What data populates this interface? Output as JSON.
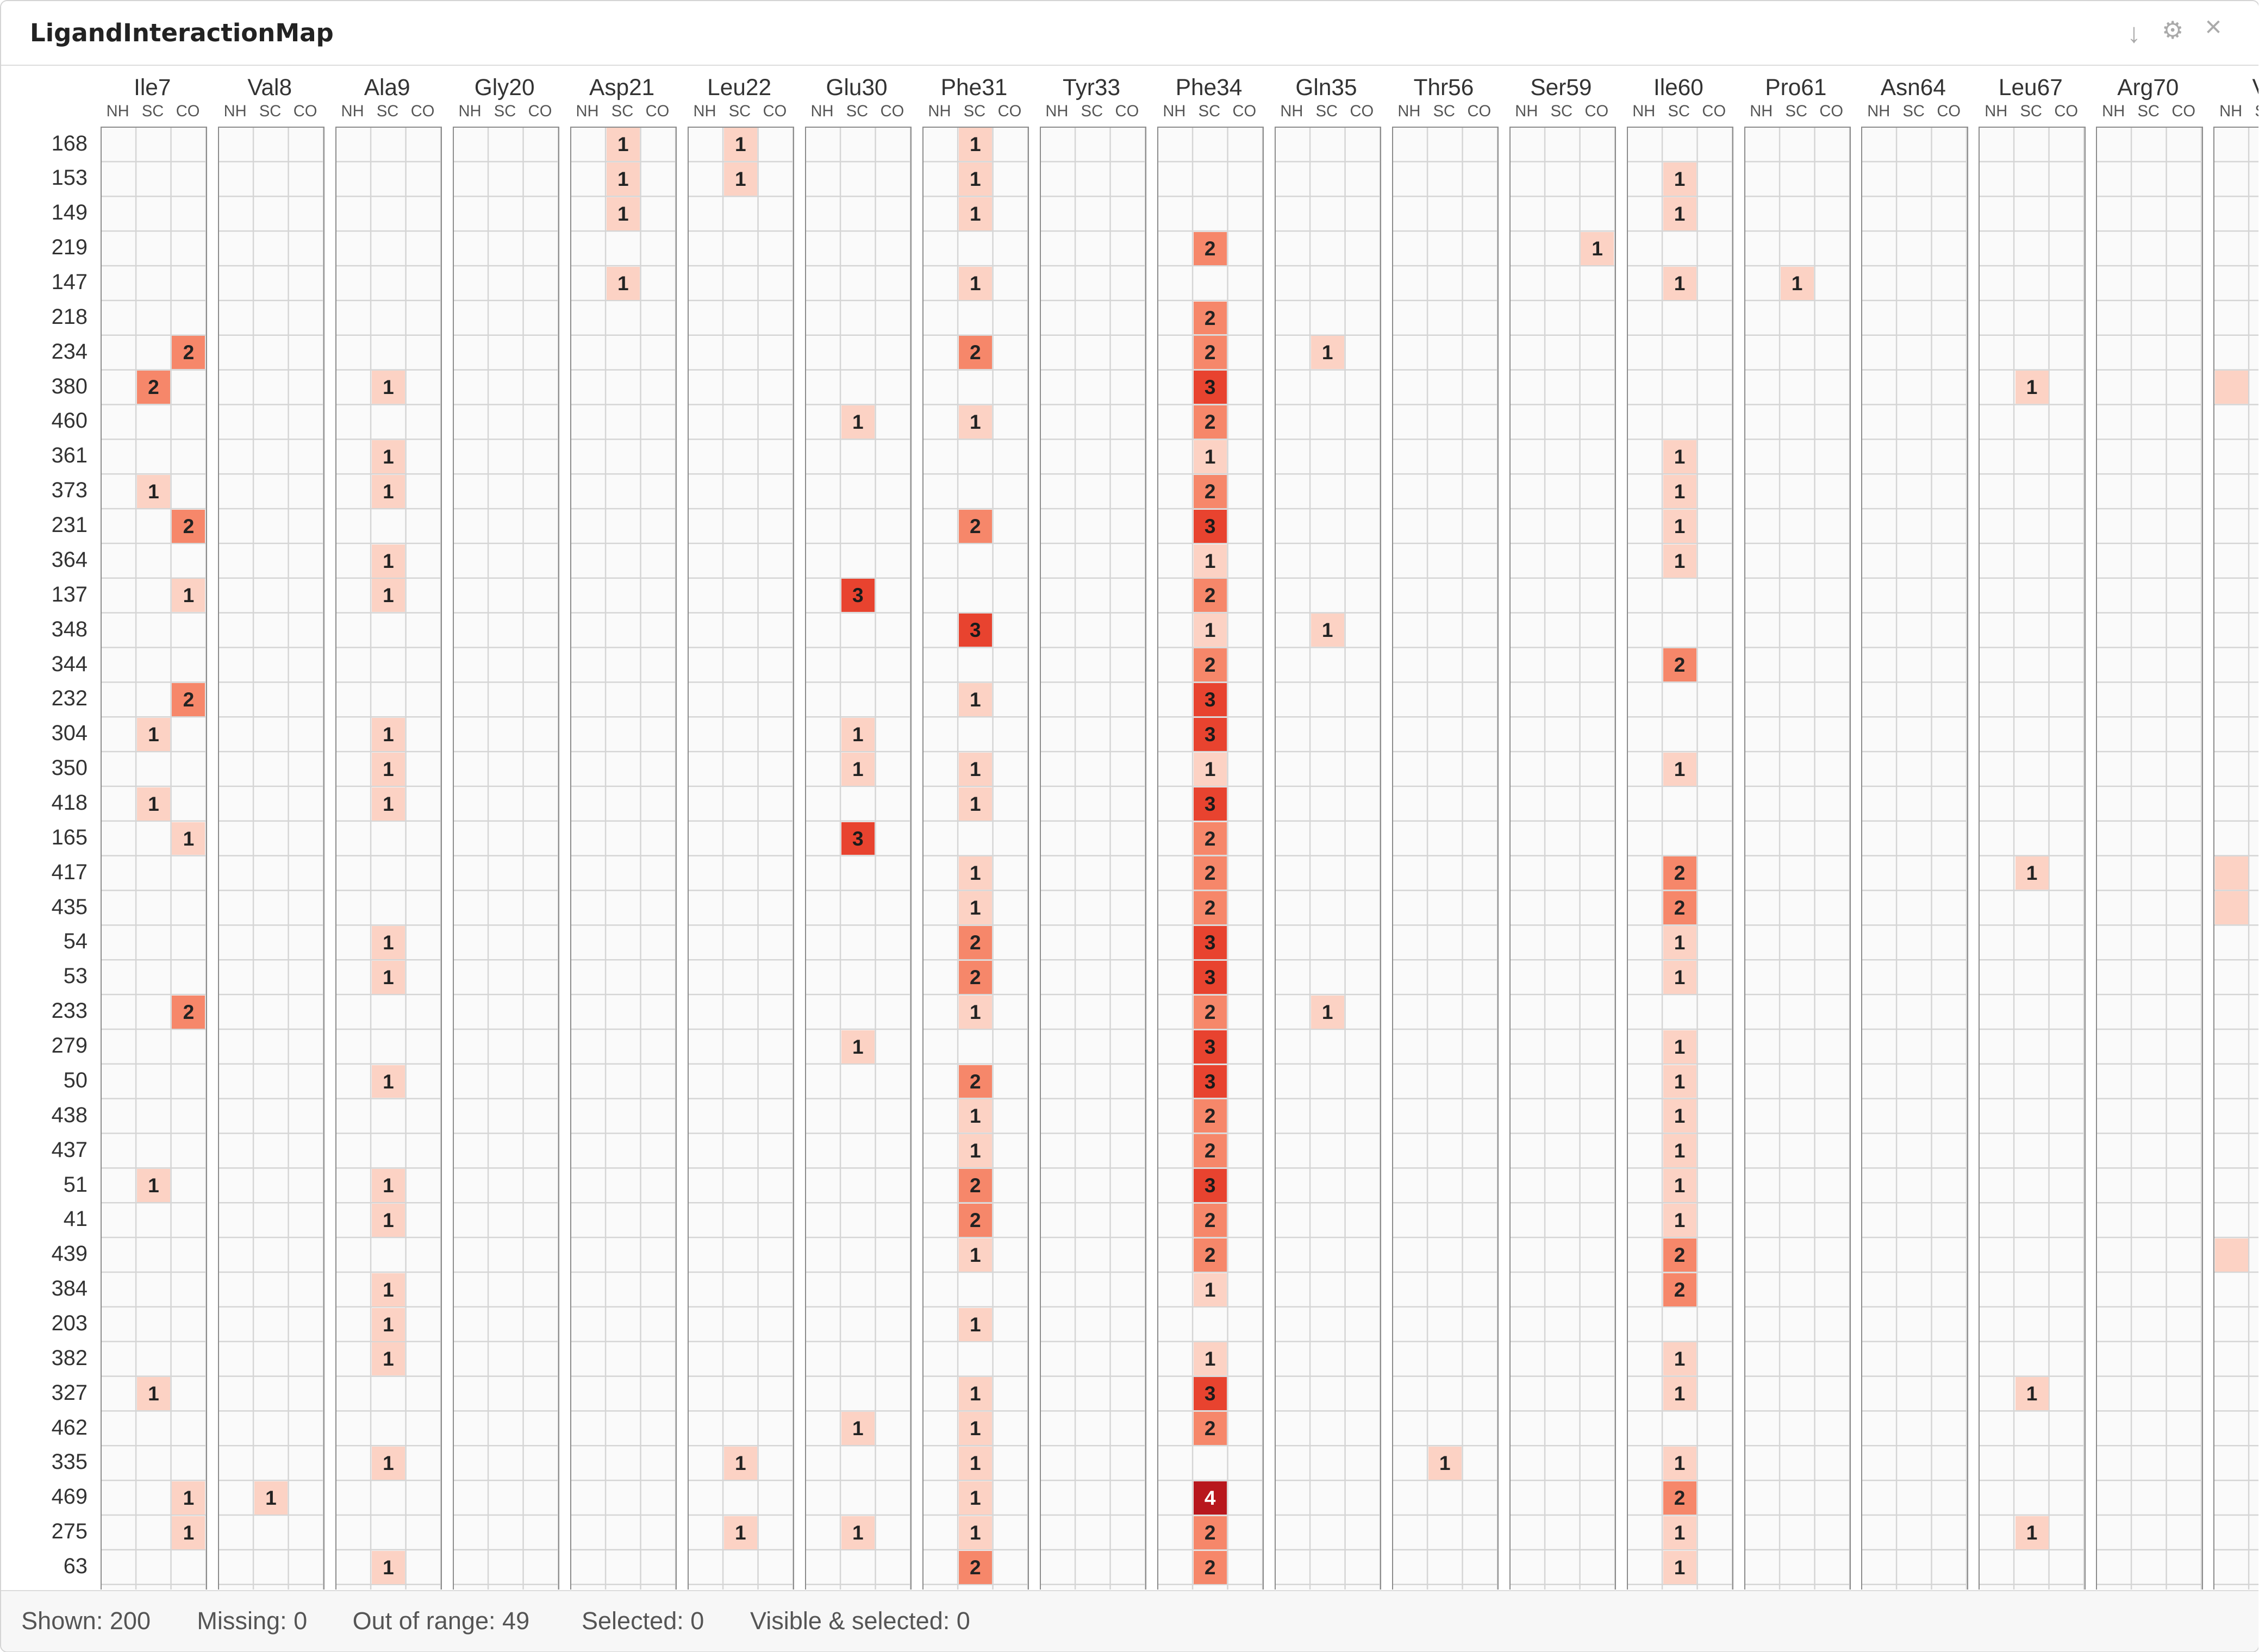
{
  "window": {
    "title": "LigandInteractionMap"
  },
  "toolbar": {
    "icons": [
      "download-icon",
      "gear-icon",
      "close-icon"
    ],
    "download_glyph": "↓",
    "settings_glyph": "⚙",
    "close_glyph": "×"
  },
  "subcolumns": [
    "NH",
    "SC",
    "CO"
  ],
  "residues": [
    "Ile7",
    "Val8",
    "Ala9",
    "Gly20",
    "Asp21",
    "Leu22",
    "Glu30",
    "Phe31",
    "Tyr33",
    "Phe34",
    "Gln35",
    "Thr56",
    "Ser59",
    "Ile60",
    "Pro61",
    "Asn64",
    "Leu67",
    "Arg70",
    "Va"
  ],
  "rows": [
    "168",
    "153",
    "149",
    "219",
    "147",
    "218",
    "234",
    "380",
    "460",
    "361",
    "373",
    "231",
    "364",
    "137",
    "348",
    "344",
    "232",
    "304",
    "350",
    "418",
    "165",
    "417",
    "435",
    "54",
    "53",
    "233",
    "279",
    "50",
    "438",
    "437",
    "51",
    "41",
    "439",
    "384",
    "203",
    "382",
    "327",
    "462",
    "335",
    "469",
    "275",
    "63"
  ],
  "colors": {
    "level1": "#fcd2c4",
    "level2": "#f6876a",
    "level3": "#e8432f",
    "level4": "#b8171d",
    "grid": "#d5d5d5",
    "group_border": "#8c8c8c"
  },
  "cells": [
    {
      "r": 0,
      "c": "Asp21.SC",
      "v": 1
    },
    {
      "r": 0,
      "c": "Leu22.SC",
      "v": 1
    },
    {
      "r": 0,
      "c": "Phe31.SC",
      "v": 1
    },
    {
      "r": 1,
      "c": "Asp21.SC",
      "v": 1
    },
    {
      "r": 1,
      "c": "Leu22.SC",
      "v": 1
    },
    {
      "r": 1,
      "c": "Phe31.SC",
      "v": 1
    },
    {
      "r": 1,
      "c": "Ile60.SC",
      "v": 1
    },
    {
      "r": 2,
      "c": "Asp21.SC",
      "v": 1
    },
    {
      "r": 2,
      "c": "Phe31.SC",
      "v": 1
    },
    {
      "r": 2,
      "c": "Ile60.SC",
      "v": 1
    },
    {
      "r": 3,
      "c": "Phe34.SC",
      "v": 2
    },
    {
      "r": 3,
      "c": "Ser59.CO",
      "v": 1
    },
    {
      "r": 4,
      "c": "Asp21.SC",
      "v": 1
    },
    {
      "r": 4,
      "c": "Phe31.SC",
      "v": 1
    },
    {
      "r": 4,
      "c": "Ile60.SC",
      "v": 1
    },
    {
      "r": 4,
      "c": "Pro61.SC",
      "v": 1
    },
    {
      "r": 5,
      "c": "Phe34.SC",
      "v": 2
    },
    {
      "r": 6,
      "c": "Ile7.CO",
      "v": 2
    },
    {
      "r": 6,
      "c": "Phe31.SC",
      "v": 2
    },
    {
      "r": 6,
      "c": "Phe34.SC",
      "v": 2
    },
    {
      "r": 6,
      "c": "Gln35.SC",
      "v": 1
    },
    {
      "r": 7,
      "c": "Ile7.SC",
      "v": 2
    },
    {
      "r": 7,
      "c": "Ala9.SC",
      "v": 1
    },
    {
      "r": 7,
      "c": "Phe34.SC",
      "v": 3
    },
    {
      "r": 7,
      "c": "Leu67.SC",
      "v": 1
    },
    {
      "r": 7,
      "c": "Va.NH",
      "v": 1,
      "nolabel": true
    },
    {
      "r": 8,
      "c": "Glu30.SC",
      "v": 1
    },
    {
      "r": 8,
      "c": "Phe31.SC",
      "v": 1
    },
    {
      "r": 8,
      "c": "Phe34.SC",
      "v": 2
    },
    {
      "r": 9,
      "c": "Ala9.SC",
      "v": 1
    },
    {
      "r": 9,
      "c": "Phe34.SC",
      "v": 1
    },
    {
      "r": 9,
      "c": "Ile60.SC",
      "v": 1
    },
    {
      "r": 10,
      "c": "Ile7.SC",
      "v": 1
    },
    {
      "r": 10,
      "c": "Ala9.SC",
      "v": 1
    },
    {
      "r": 10,
      "c": "Phe34.SC",
      "v": 2
    },
    {
      "r": 10,
      "c": "Ile60.SC",
      "v": 1
    },
    {
      "r": 11,
      "c": "Ile7.CO",
      "v": 2
    },
    {
      "r": 11,
      "c": "Phe31.SC",
      "v": 2
    },
    {
      "r": 11,
      "c": "Phe34.SC",
      "v": 3
    },
    {
      "r": 11,
      "c": "Ile60.SC",
      "v": 1
    },
    {
      "r": 12,
      "c": "Ala9.SC",
      "v": 1
    },
    {
      "r": 12,
      "c": "Phe34.SC",
      "v": 1
    },
    {
      "r": 12,
      "c": "Ile60.SC",
      "v": 1
    },
    {
      "r": 13,
      "c": "Ile7.CO",
      "v": 1
    },
    {
      "r": 13,
      "c": "Ala9.SC",
      "v": 1
    },
    {
      "r": 13,
      "c": "Glu30.SC",
      "v": 3
    },
    {
      "r": 13,
      "c": "Phe34.SC",
      "v": 2
    },
    {
      "r": 14,
      "c": "Phe31.SC",
      "v": 3
    },
    {
      "r": 14,
      "c": "Phe34.SC",
      "v": 1
    },
    {
      "r": 14,
      "c": "Gln35.SC",
      "v": 1
    },
    {
      "r": 15,
      "c": "Phe34.SC",
      "v": 2
    },
    {
      "r": 15,
      "c": "Ile60.SC",
      "v": 2
    },
    {
      "r": 16,
      "c": "Ile7.CO",
      "v": 2
    },
    {
      "r": 16,
      "c": "Phe31.SC",
      "v": 1
    },
    {
      "r": 16,
      "c": "Phe34.SC",
      "v": 3
    },
    {
      "r": 17,
      "c": "Ile7.SC",
      "v": 1
    },
    {
      "r": 17,
      "c": "Ala9.SC",
      "v": 1
    },
    {
      "r": 17,
      "c": "Glu30.SC",
      "v": 1
    },
    {
      "r": 17,
      "c": "Phe34.SC",
      "v": 3
    },
    {
      "r": 18,
      "c": "Ala9.SC",
      "v": 1
    },
    {
      "r": 18,
      "c": "Glu30.SC",
      "v": 1
    },
    {
      "r": 18,
      "c": "Phe31.SC",
      "v": 1
    },
    {
      "r": 18,
      "c": "Phe34.SC",
      "v": 1
    },
    {
      "r": 18,
      "c": "Ile60.SC",
      "v": 1
    },
    {
      "r": 19,
      "c": "Ile7.SC",
      "v": 1
    },
    {
      "r": 19,
      "c": "Ala9.SC",
      "v": 1
    },
    {
      "r": 19,
      "c": "Phe31.SC",
      "v": 1
    },
    {
      "r": 19,
      "c": "Phe34.SC",
      "v": 3
    },
    {
      "r": 20,
      "c": "Ile7.CO",
      "v": 1
    },
    {
      "r": 20,
      "c": "Glu30.SC",
      "v": 3
    },
    {
      "r": 20,
      "c": "Phe34.SC",
      "v": 2
    },
    {
      "r": 21,
      "c": "Phe31.SC",
      "v": 1
    },
    {
      "r": 21,
      "c": "Phe34.SC",
      "v": 2
    },
    {
      "r": 21,
      "c": "Ile60.SC",
      "v": 2
    },
    {
      "r": 21,
      "c": "Leu67.SC",
      "v": 1
    },
    {
      "r": 21,
      "c": "Va.NH",
      "v": 1,
      "nolabel": true
    },
    {
      "r": 22,
      "c": "Phe31.SC",
      "v": 1
    },
    {
      "r": 22,
      "c": "Phe34.SC",
      "v": 2
    },
    {
      "r": 22,
      "c": "Ile60.SC",
      "v": 2
    },
    {
      "r": 22,
      "c": "Va.NH",
      "v": 1,
      "nolabel": true
    },
    {
      "r": 23,
      "c": "Ala9.SC",
      "v": 1
    },
    {
      "r": 23,
      "c": "Phe31.SC",
      "v": 2
    },
    {
      "r": 23,
      "c": "Phe34.SC",
      "v": 3
    },
    {
      "r": 23,
      "c": "Ile60.SC",
      "v": 1
    },
    {
      "r": 24,
      "c": "Ala9.SC",
      "v": 1
    },
    {
      "r": 24,
      "c": "Phe31.SC",
      "v": 2
    },
    {
      "r": 24,
      "c": "Phe34.SC",
      "v": 3
    },
    {
      "r": 24,
      "c": "Ile60.SC",
      "v": 1
    },
    {
      "r": 25,
      "c": "Ile7.CO",
      "v": 2
    },
    {
      "r": 25,
      "c": "Phe31.SC",
      "v": 1
    },
    {
      "r": 25,
      "c": "Phe34.SC",
      "v": 2
    },
    {
      "r": 25,
      "c": "Gln35.SC",
      "v": 1
    },
    {
      "r": 26,
      "c": "Glu30.SC",
      "v": 1
    },
    {
      "r": 26,
      "c": "Phe34.SC",
      "v": 3
    },
    {
      "r": 26,
      "c": "Ile60.SC",
      "v": 1
    },
    {
      "r": 27,
      "c": "Ala9.SC",
      "v": 1
    },
    {
      "r": 27,
      "c": "Phe31.SC",
      "v": 2
    },
    {
      "r": 27,
      "c": "Phe34.SC",
      "v": 3
    },
    {
      "r": 27,
      "c": "Ile60.SC",
      "v": 1
    },
    {
      "r": 28,
      "c": "Phe31.SC",
      "v": 1
    },
    {
      "r": 28,
      "c": "Phe34.SC",
      "v": 2
    },
    {
      "r": 28,
      "c": "Ile60.SC",
      "v": 1
    },
    {
      "r": 29,
      "c": "Phe31.SC",
      "v": 1
    },
    {
      "r": 29,
      "c": "Phe34.SC",
      "v": 2
    },
    {
      "r": 29,
      "c": "Ile60.SC",
      "v": 1
    },
    {
      "r": 30,
      "c": "Ile7.SC",
      "v": 1
    },
    {
      "r": 30,
      "c": "Ala9.SC",
      "v": 1
    },
    {
      "r": 30,
      "c": "Phe31.SC",
      "v": 2
    },
    {
      "r": 30,
      "c": "Phe34.SC",
      "v": 3
    },
    {
      "r": 30,
      "c": "Ile60.SC",
      "v": 1
    },
    {
      "r": 31,
      "c": "Ala9.SC",
      "v": 1
    },
    {
      "r": 31,
      "c": "Phe31.SC",
      "v": 2
    },
    {
      "r": 31,
      "c": "Phe34.SC",
      "v": 2
    },
    {
      "r": 31,
      "c": "Ile60.SC",
      "v": 1
    },
    {
      "r": 32,
      "c": "Phe31.SC",
      "v": 1
    },
    {
      "r": 32,
      "c": "Phe34.SC",
      "v": 2
    },
    {
      "r": 32,
      "c": "Ile60.SC",
      "v": 2
    },
    {
      "r": 32,
      "c": "Va.NH",
      "v": 1,
      "nolabel": true
    },
    {
      "r": 33,
      "c": "Ala9.SC",
      "v": 1
    },
    {
      "r": 33,
      "c": "Phe34.SC",
      "v": 1
    },
    {
      "r": 33,
      "c": "Ile60.SC",
      "v": 2
    },
    {
      "r": 34,
      "c": "Ala9.SC",
      "v": 1
    },
    {
      "r": 34,
      "c": "Phe31.SC",
      "v": 1
    },
    {
      "r": 35,
      "c": "Ala9.SC",
      "v": 1
    },
    {
      "r": 35,
      "c": "Phe34.SC",
      "v": 1
    },
    {
      "r": 35,
      "c": "Ile60.SC",
      "v": 1
    },
    {
      "r": 36,
      "c": "Ile7.SC",
      "v": 1
    },
    {
      "r": 36,
      "c": "Phe31.SC",
      "v": 1
    },
    {
      "r": 36,
      "c": "Phe34.SC",
      "v": 3
    },
    {
      "r": 36,
      "c": "Ile60.SC",
      "v": 1
    },
    {
      "r": 36,
      "c": "Leu67.SC",
      "v": 1
    },
    {
      "r": 37,
      "c": "Glu30.SC",
      "v": 1
    },
    {
      "r": 37,
      "c": "Phe31.SC",
      "v": 1
    },
    {
      "r": 37,
      "c": "Phe34.SC",
      "v": 2
    },
    {
      "r": 38,
      "c": "Ala9.SC",
      "v": 1
    },
    {
      "r": 38,
      "c": "Leu22.SC",
      "v": 1
    },
    {
      "r": 38,
      "c": "Phe31.SC",
      "v": 1
    },
    {
      "r": 38,
      "c": "Thr56.SC",
      "v": 1
    },
    {
      "r": 38,
      "c": "Ile60.SC",
      "v": 1
    },
    {
      "r": 39,
      "c": "Ile7.CO",
      "v": 1
    },
    {
      "r": 39,
      "c": "Val8.SC",
      "v": 1
    },
    {
      "r": 39,
      "c": "Phe31.SC",
      "v": 1
    },
    {
      "r": 39,
      "c": "Phe34.SC",
      "v": 4
    },
    {
      "r": 39,
      "c": "Ile60.SC",
      "v": 2
    },
    {
      "r": 40,
      "c": "Ile7.CO",
      "v": 1
    },
    {
      "r": 40,
      "c": "Leu22.SC",
      "v": 1
    },
    {
      "r": 40,
      "c": "Glu30.SC",
      "v": 1
    },
    {
      "r": 40,
      "c": "Phe31.SC",
      "v": 1
    },
    {
      "r": 40,
      "c": "Phe34.SC",
      "v": 2
    },
    {
      "r": 40,
      "c": "Ile60.SC",
      "v": 1
    },
    {
      "r": 40,
      "c": "Leu67.SC",
      "v": 1
    },
    {
      "r": 41,
      "c": "Ala9.SC",
      "v": 1
    },
    {
      "r": 41,
      "c": "Phe31.SC",
      "v": 2
    },
    {
      "r": 41,
      "c": "Phe34.SC",
      "v": 2
    },
    {
      "r": 41,
      "c": "Ile60.SC",
      "v": 1
    }
  ],
  "status": {
    "shown": "Shown: 200",
    "missing": "Missing: 0",
    "out_of_range": "Out of range: 49",
    "selected": "Selected: 0",
    "visible_selected": "Visible & selected: 0"
  }
}
